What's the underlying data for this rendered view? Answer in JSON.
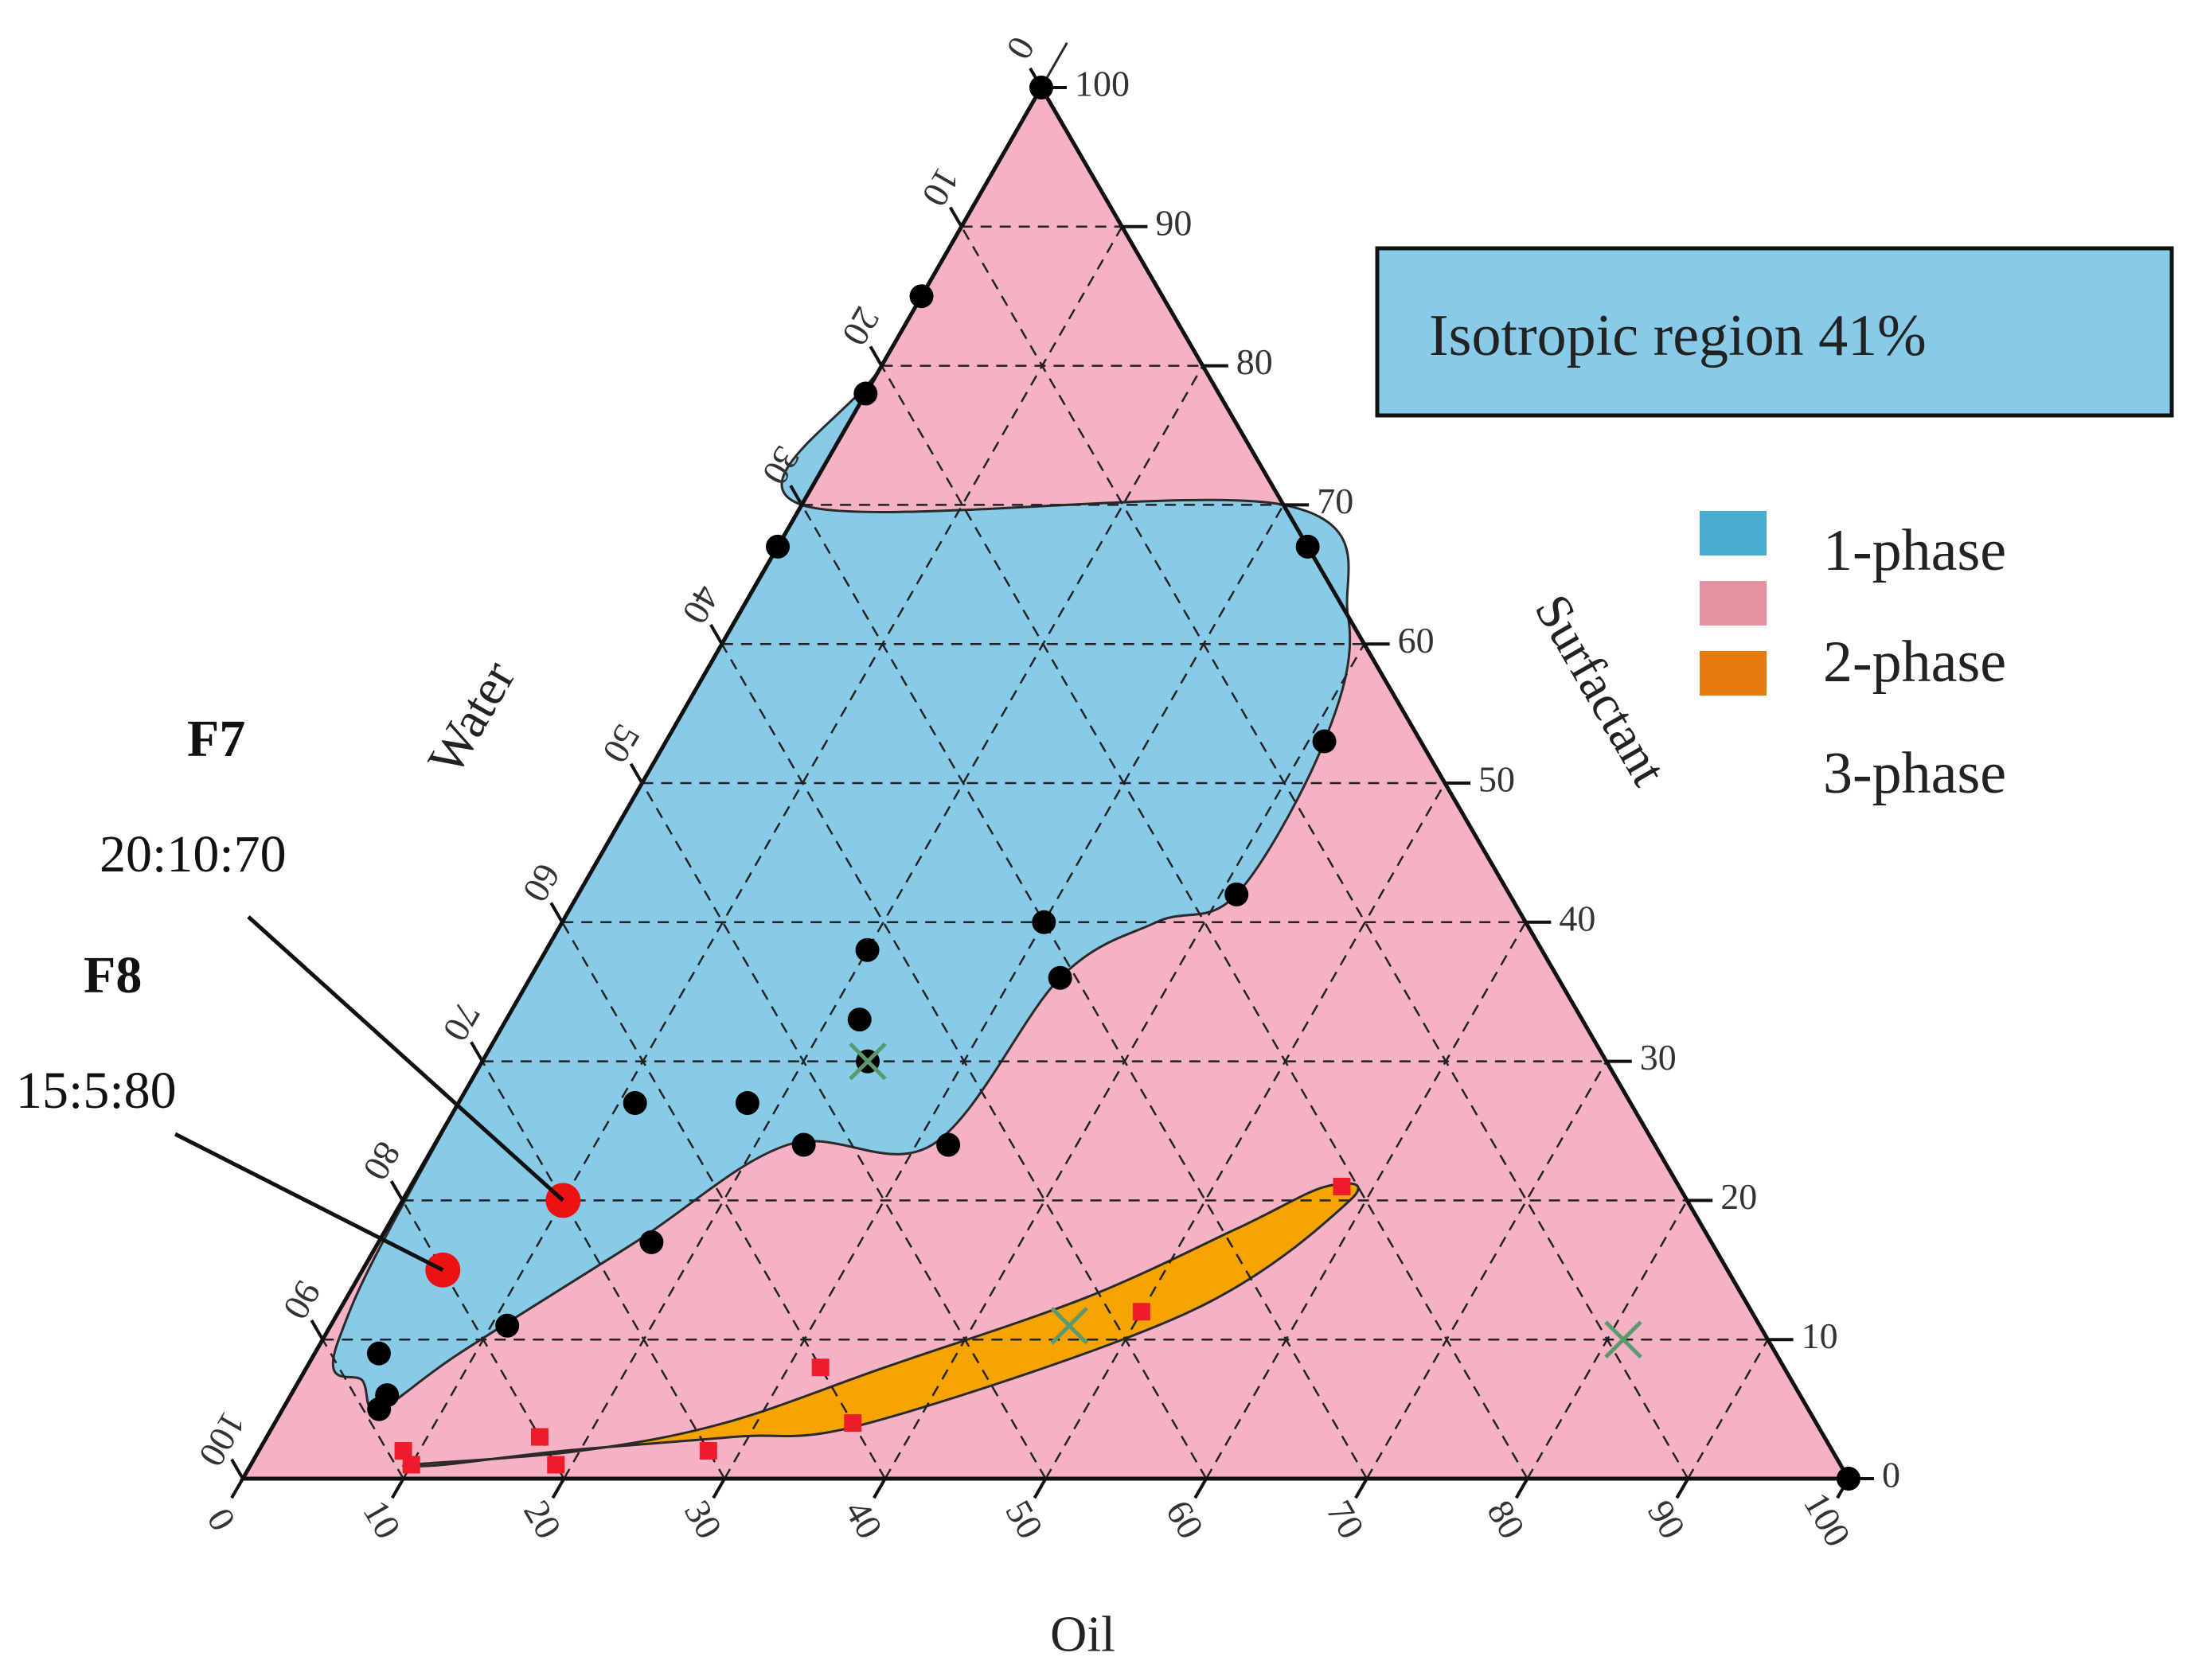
{
  "chart_data": {
    "type": "ternary",
    "axes": {
      "left": {
        "title": "Water",
        "ticks": [
          0,
          10,
          20,
          30,
          40,
          50,
          60,
          70,
          80,
          90,
          100
        ]
      },
      "right": {
        "title": "Surfactant",
        "ticks": [
          0,
          10,
          20,
          30,
          40,
          50,
          60,
          70,
          80,
          90,
          100
        ]
      },
      "bottom": {
        "title": "Oil",
        "ticks": [
          0,
          10,
          20,
          30,
          40,
          50,
          60,
          70,
          80,
          90,
          100
        ]
      }
    },
    "grid": true,
    "regions": [
      {
        "name": "1-phase",
        "color": "#87cbe9",
        "boundary": [
          {
            "surf": 100,
            "oil": 0
          },
          {
            "surf": 90,
            "oil": 0
          },
          {
            "surf": 80,
            "oil": 0
          },
          {
            "surf": 70,
            "oil": 0
          },
          {
            "surf": 70,
            "oil": 30
          },
          {
            "surf": 62,
            "oil": 38
          },
          {
            "surf": 53,
            "oil": 41
          },
          {
            "surf": 42,
            "oil": 41
          },
          {
            "surf": 40,
            "oil": 37
          },
          {
            "surf": 36,
            "oil": 33
          },
          {
            "surf": 24,
            "oil": 31
          },
          {
            "surf": 24,
            "oil": 22
          },
          {
            "surf": 17,
            "oil": 16
          },
          {
            "surf": 9,
            "oil": 9
          },
          {
            "surf": 5,
            "oil": 6
          },
          {
            "surf": 7,
            "oil": 4
          },
          {
            "surf": 10,
            "oil": 1
          },
          {
            "surf": 30,
            "oil": 0
          }
        ]
      },
      {
        "name": "2-phase",
        "color": "#f5b2c4",
        "boundary": "remainder of triangle"
      },
      {
        "name": "3-phase",
        "color": "#f6a500",
        "boundary": [
          {
            "surf": 1,
            "oil": 10
          },
          {
            "surf": 2,
            "oil": 20
          },
          {
            "surf": 4,
            "oil": 28
          },
          {
            "surf": 8,
            "oil": 36
          },
          {
            "surf": 13,
            "oil": 46
          },
          {
            "surf": 18,
            "oil": 53
          },
          {
            "surf": 21,
            "oil": 57
          },
          {
            "surf": 20,
            "oil": 59
          },
          {
            "surf": 12,
            "oil": 53
          },
          {
            "surf": 4,
            "oil": 37
          },
          {
            "surf": 3,
            "oil": 29
          },
          {
            "surf": 2,
            "oil": 19
          },
          {
            "surf": 1,
            "oil": 12
          }
        ]
      }
    ],
    "series": [
      {
        "marker": "black-dot",
        "points": [
          {
            "surf": 100,
            "oil": 0
          },
          {
            "surf": 85,
            "oil": 0
          },
          {
            "surf": 78,
            "oil": 0
          },
          {
            "surf": 67,
            "oil": 0
          },
          {
            "surf": 67,
            "oil": 33
          },
          {
            "surf": 53,
            "oil": 41
          },
          {
            "surf": 42,
            "oil": 41
          },
          {
            "surf": 40,
            "oil": 30
          },
          {
            "surf": 36,
            "oil": 33
          },
          {
            "surf": 38,
            "oil": 20
          },
          {
            "surf": 33,
            "oil": 22
          },
          {
            "surf": 30,
            "oil": 24
          },
          {
            "surf": 24,
            "oil": 32
          },
          {
            "surf": 24,
            "oil": 23
          },
          {
            "surf": 27,
            "oil": 18
          },
          {
            "surf": 27,
            "oil": 11
          },
          {
            "surf": 17,
            "oil": 17
          },
          {
            "surf": 11,
            "oil": 11
          },
          {
            "surf": 9,
            "oil": 4
          },
          {
            "surf": 6,
            "oil": 6
          },
          {
            "surf": 5,
            "oil": 6
          },
          {
            "surf": 0,
            "oil": 100
          }
        ]
      },
      {
        "marker": "red-square",
        "points": [
          {
            "surf": 21,
            "oil": 58
          },
          {
            "surf": 12,
            "oil": 50
          },
          {
            "surf": 8,
            "oil": 32
          },
          {
            "surf": 4,
            "oil": 36
          },
          {
            "surf": 2,
            "oil": 28
          },
          {
            "surf": 1,
            "oil": 19
          },
          {
            "surf": 3,
            "oil": 17
          },
          {
            "surf": 2,
            "oil": 9
          },
          {
            "surf": 1,
            "oil": 10
          }
        ]
      },
      {
        "marker": "red-dot",
        "points": [
          {
            "surf": 20,
            "oil": 10
          },
          {
            "surf": 15,
            "oil": 5
          }
        ]
      },
      {
        "marker": "green-x",
        "points": [
          {
            "surf": 30,
            "oil": 24
          },
          {
            "surf": 11,
            "oil": 46
          },
          {
            "surf": 10,
            "oil": 81
          }
        ]
      }
    ],
    "annotations": [
      {
        "name": "F7",
        "ratio": "20:10:70",
        "point": {
          "surf": 20,
          "oil": 10
        }
      },
      {
        "name": "F8",
        "ratio": "15:5:80",
        "point": {
          "surf": 15,
          "oil": 5
        }
      }
    ],
    "info_box": {
      "text": "Isotropic region 41%",
      "color": "#87cbe9"
    },
    "legend": {
      "placement": "right",
      "items": [
        {
          "label": "1-phase",
          "color": "#4aaed0"
        },
        {
          "label": "2-phase",
          "color": "#e2939f"
        },
        {
          "label": "3-phase",
          "color": "#e67a0c"
        }
      ]
    }
  }
}
